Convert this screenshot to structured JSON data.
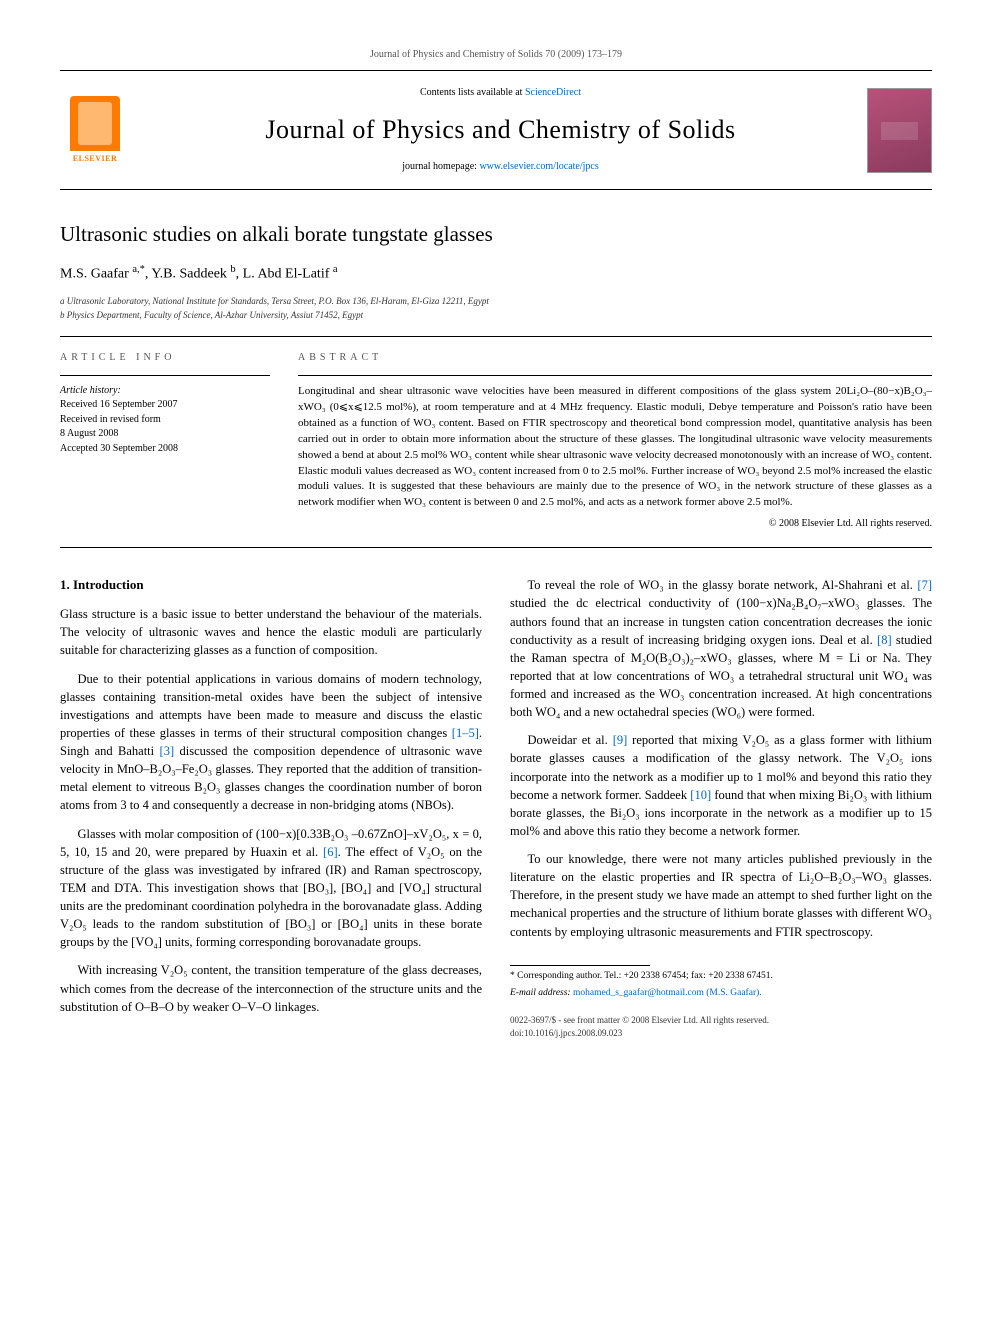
{
  "journal_header": "Journal of Physics and Chemistry of Solids 70 (2009) 173–179",
  "banner": {
    "contents_prefix": "Contents lists available at ",
    "contents_link": "ScienceDirect",
    "journal_title": "Journal of Physics and Chemistry of Solids",
    "homepage_prefix": "journal homepage: ",
    "homepage_link": "www.elsevier.com/locate/jpcs",
    "publisher_name": "ELSEVIER"
  },
  "article": {
    "title": "Ultrasonic studies on alkali borate tungstate glasses",
    "authors_html": "M.S. Gaafar <sup>a,*</sup>, Y.B. Saddeek <sup>b</sup>, L. Abd El-Latif <sup>a</sup>",
    "affiliations": [
      "a Ultrasonic Laboratory, National Institute for Standards, Tersa Street, P.O. Box 136, El-Haram, El-Giza 12211, Egypt",
      "b Physics Department, Faculty of Science, Al-Azhar University, Assiut 71452, Egypt"
    ]
  },
  "info": {
    "label": "ARTICLE INFO",
    "history_head": "Article history:",
    "history": [
      "Received 16 September 2007",
      "Received in revised form",
      "8 August 2008",
      "Accepted 30 September 2008"
    ]
  },
  "abstract": {
    "label": "ABSTRACT",
    "text": "Longitudinal and shear ultrasonic wave velocities have been measured in different compositions of the glass system 20Li₂O–(80−x)B₂O₃–xWO₃ (0⩽x⩽12.5 mol%), at room temperature and at 4 MHz frequency. Elastic moduli, Debye temperature and Poisson's ratio have been obtained as a function of WO₃ content. Based on FTIR spectroscopy and theoretical bond compression model, quantitative analysis has been carried out in order to obtain more information about the structure of these glasses. The longitudinal ultrasonic wave velocity measurements showed a bend at about 2.5 mol% WO₃ content while shear ultrasonic wave velocity decreased monotonously with an increase of WO₃ content. Elastic moduli values decreased as WO₃ content increased from 0 to 2.5 mol%. Further increase of WO₃ beyond 2.5 mol% increased the elastic moduli values. It is suggested that these behaviours are mainly due to the presence of WO₃ in the network structure of these glasses as a network modifier when WO₃ content is between 0 and 2.5 mol%, and acts as a network former above 2.5 mol%.",
    "copyright": "© 2008 Elsevier Ltd. All rights reserved."
  },
  "body": {
    "heading": "1. Introduction",
    "paragraphs": [
      "Glass structure is a basic issue to better understand the behaviour of the materials. The velocity of ultrasonic waves and hence the elastic moduli are particularly suitable for characterizing glasses as a function of composition.",
      "Due to their potential applications in various domains of modern technology, glasses containing transition-metal oxides have been the subject of intensive investigations and attempts have been made to measure and discuss the elastic properties of these glasses in terms of their structural composition changes [1–5]. Singh and Bahatti [3] discussed the composition dependence of ultrasonic wave velocity in MnO–B₂O₃–Fe₂O₃ glasses. They reported that the addition of transition-metal element to vitreous B₂O₃ glasses changes the coordination number of boron atoms from 3 to 4 and consequently a decrease in non-bridging atoms (NBOs).",
      "Glasses with molar composition of (100−x)[0.33B₂O₃ –0.67ZnO]–xV₂O₅, x = 0, 5, 10, 15 and 20, were prepared by Huaxin et al. [6]. The effect of V₂O₅ on the structure of the glass was investigated by infrared (IR) and Raman spectroscopy, TEM and DTA. This investigation shows that [BO₃], [BO₄] and [VO₄] structural units are the predominant coordination polyhedra in the borovanadate glass. Adding V₂O₅ leads to the random substitution of [BO₃] or [BO₄] units in these borate groups by the [VO₄] units, forming corresponding borovanadate groups.",
      "With increasing V₂O₅ content, the transition temperature of the glass decreases, which comes from the decrease of the interconnection of the structure units and the substitution of O–B–O by weaker O–V–O linkages.",
      "To reveal the role of WO₃ in the glassy borate network, Al-Shahrani et al. [7] studied the dc electrical conductivity of (100−x)Na₂B₄O₇–xWO₃ glasses. The authors found that an increase in tungsten cation concentration decreases the ionic conductivity as a result of increasing bridging oxygen ions. Deal et al. [8] studied the Raman spectra of M₂O(B₂O₃)₂–xWO₃ glasses, where M = Li or Na. They reported that at low concentrations of WO₃ a tetrahedral structural unit WO₄ was formed and increased as the WO₃ concentration increased. At high concentrations both WO₄ and a new octahedral species (WO₆) were formed.",
      "Doweidar et al. [9] reported that mixing V₂O₅ as a glass former with lithium borate glasses causes a modification of the glassy network. The V₂O₅ ions incorporate into the network as a modifier up to 1 mol% and beyond this ratio they become a network former. Saddeek [10] found that when mixing Bi₂O₃ with lithium borate glasses, the Bi₂O₃ ions incorporate in the network as a modifier up to 15 mol% and above this ratio they become a network former.",
      "To our knowledge, there were not many articles published previously in the literature on the elastic properties and IR spectra of Li₂O–B₂O₃–WO₃ glasses. Therefore, in the present study we have made an attempt to shed further light on the mechanical properties and the structure of lithium borate glasses with different WO₃ contents by employing ultrasonic measurements and FTIR spectroscopy."
    ]
  },
  "footnote": {
    "corr": "* Corresponding author. Tel.: +20 2338 67454; fax: +20 2338 67451.",
    "email_label": "E-mail address: ",
    "email": "mohamed_s_gaafar@hotmail.com (M.S. Gaafar)."
  },
  "footer": {
    "line1": "0022-3697/$ - see front matter © 2008 Elsevier Ltd. All rights reserved.",
    "line2": "doi:10.1016/j.jpcs.2008.09.023"
  },
  "colors": {
    "link": "#0066cc",
    "elsevier_orange": "#ff7a00",
    "cover_bg": "#b8527a"
  }
}
